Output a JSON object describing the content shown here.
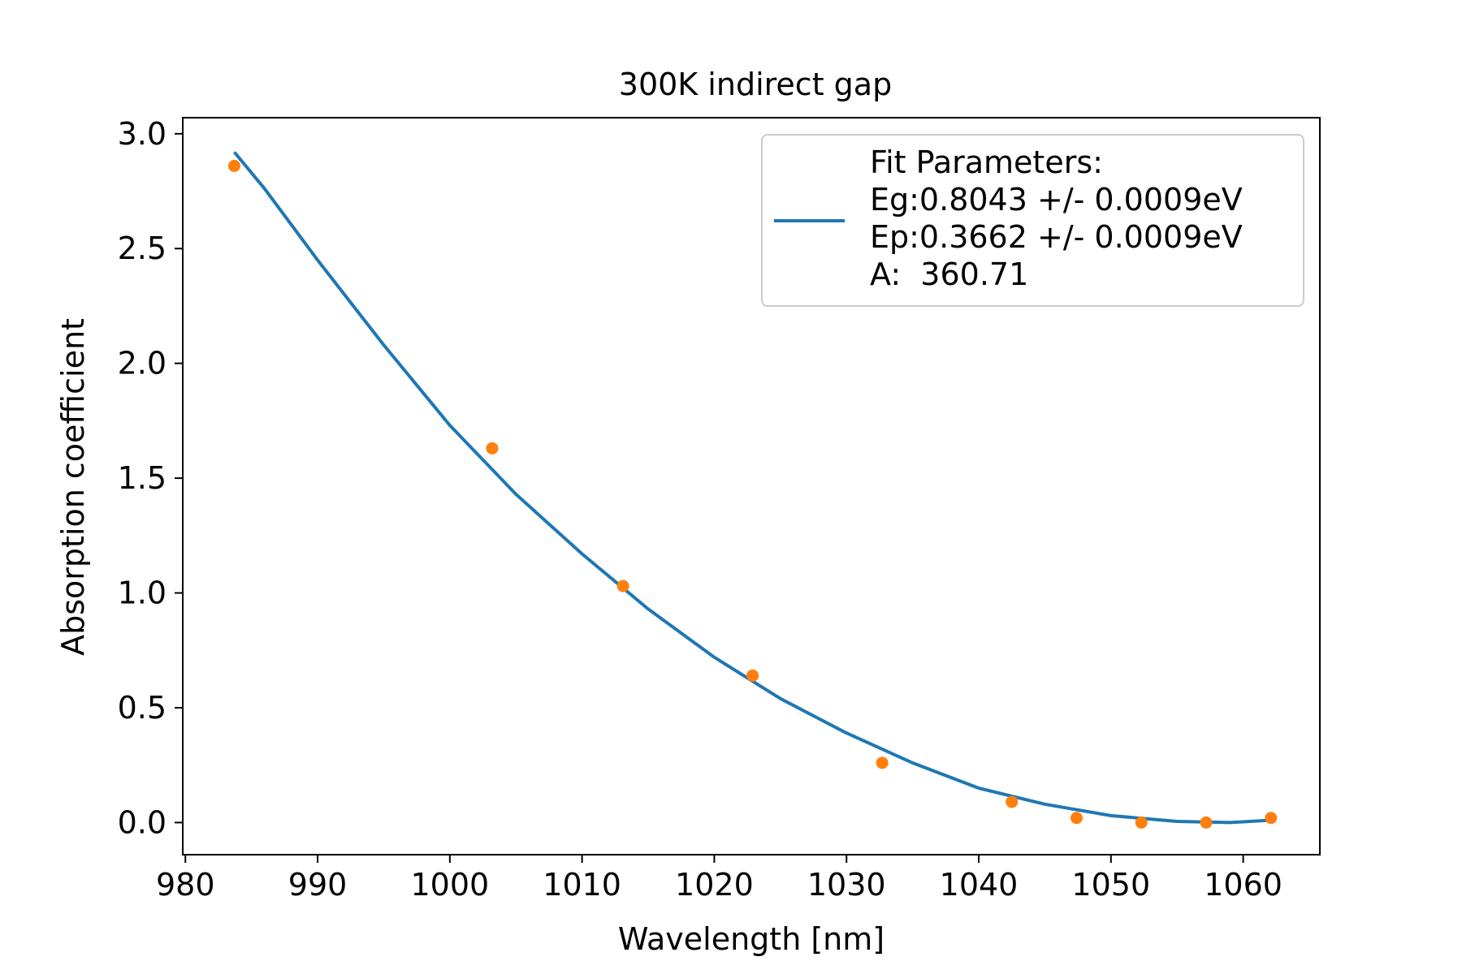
{
  "chart_data": {
    "type": "scatter",
    "title": "300K indirect gap",
    "xlabel": "Wavelength [nm]",
    "ylabel": "Absorption coefficient",
    "xlim": [
      979.8,
      1065.8
    ],
    "ylim": [
      -0.14,
      3.07
    ],
    "xticks": [
      980,
      990,
      1000,
      1010,
      1020,
      1030,
      1040,
      1050,
      1060
    ],
    "xtick_labels": [
      "980",
      "990",
      "1000",
      "1010",
      "1020",
      "1030",
      "1040",
      "1050",
      "1060"
    ],
    "yticks": [
      0.0,
      0.5,
      1.0,
      1.5,
      2.0,
      2.5,
      3.0
    ],
    "ytick_labels": [
      "0.0",
      "0.5",
      "1.0",
      "1.5",
      "2.0",
      "2.5",
      "3.0"
    ],
    "grid": false,
    "legend_position": "top-right",
    "series": [
      {
        "kind": "line",
        "color": "#1f77b4",
        "x": [
          983.7,
          986,
          990,
          995,
          1000,
          1005,
          1010,
          1015,
          1020,
          1025,
          1030,
          1035,
          1040,
          1045,
          1050,
          1055,
          1059,
          1062
        ],
        "y": [
          2.92,
          2.76,
          2.45,
          2.08,
          1.73,
          1.43,
          1.17,
          0.93,
          0.72,
          0.54,
          0.39,
          0.26,
          0.15,
          0.08,
          0.03,
          0.005,
          0.0,
          0.01
        ]
      },
      {
        "kind": "points",
        "color": "#ff7f0e",
        "x": [
          983.7,
          1003.2,
          1013.1,
          1022.9,
          1032.7,
          1042.5,
          1047.4,
          1052.3,
          1057.2,
          1062.1
        ],
        "y": [
          2.86,
          1.63,
          1.03,
          0.64,
          0.26,
          0.09,
          0.02,
          0.0,
          0.0,
          0.02
        ]
      }
    ],
    "legend": {
      "lines": [
        "Fit Parameters:",
        "Eg:0.8043 +/- 0.0009eV",
        "Ep:0.3662 +/- 0.0009eV",
        "A:  360.71"
      ]
    }
  }
}
